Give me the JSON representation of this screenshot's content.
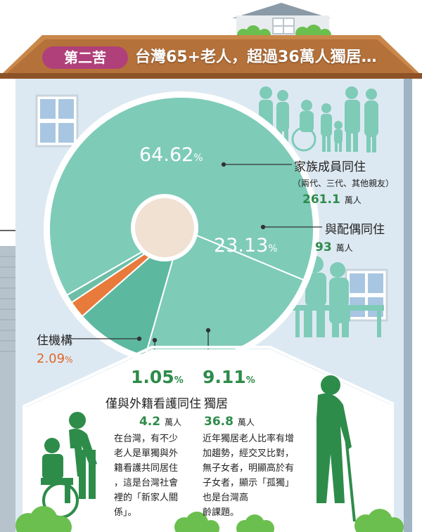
{
  "header": {
    "badge": "第二苦",
    "title": "台灣65+老人，超過36萬人獨居…"
  },
  "colors": {
    "family": "#7ecbb8",
    "spouse": "#7ecbb8",
    "alone": "#5cb9a0",
    "caregiver": "#6cbfa6",
    "institution": "#e87a3c",
    "wall": "#dde9f2",
    "roof": "#b5713a",
    "accent_green": "#2e8c4a",
    "accent_orange": "#e0662a"
  },
  "labels": {
    "family": {
      "pct": "64.62",
      "unit": "%",
      "name": "家族成員同住",
      "note": "（兩代、三代、其他親友）",
      "count": "261.1",
      "count_unit": "萬人"
    },
    "spouse": {
      "pct": "23.13",
      "unit": "%",
      "name": "與配偶同住",
      "count": "93",
      "count_unit": "萬人"
    },
    "institution": {
      "pct": "2.09",
      "unit": "%",
      "name": "住機構"
    },
    "caregiver": {
      "pct": "1.05",
      "unit": "%",
      "name": "僅與外籍看護同住",
      "count": "4.2",
      "count_unit": "萬人",
      "lines": [
        "在台灣，有不少",
        "老人是單獨與外",
        "籍看護共同居住",
        "，這是台灣社會",
        "裡的「新家人關",
        "係」。"
      ]
    },
    "alone": {
      "pct": "9.11",
      "unit": "%",
      "name": "獨居",
      "count": "36.8",
      "count_unit": "萬人",
      "lines": [
        "近年獨居老人比率有增",
        "加趨勢，經交叉比對，",
        "無子女者，明顯高於有",
        "子女者，顯示「孤獨」",
        "也是台灣高",
        "齡課題。"
      ]
    }
  },
  "chart_data": {
    "type": "pie",
    "title": "",
    "donut": true,
    "series": [
      {
        "name": "家族成員同住",
        "value": 64.62,
        "count": 261.1
      },
      {
        "name": "與配偶同住",
        "value": 23.13,
        "count": 93
      },
      {
        "name": "獨居",
        "value": 9.11,
        "count": 36.8
      },
      {
        "name": "住機構",
        "value": 2.09
      },
      {
        "name": "僅與外籍看護同住",
        "value": 1.05,
        "count": 4.2
      }
    ],
    "units": "%",
    "count_units": "萬人"
  }
}
